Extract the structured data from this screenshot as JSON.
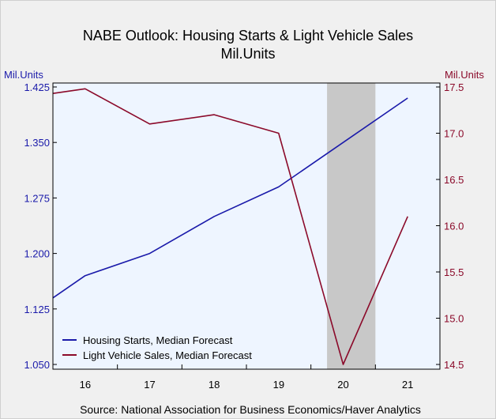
{
  "chart_data": {
    "type": "line",
    "title": "NABE Outlook: Housing Starts & Light Vehicle Sales",
    "subtitle": "Mil.Units",
    "y_left_label": "Mil.Units",
    "y_right_label": "Mil.Units",
    "x": [
      "16",
      "17",
      "18",
      "19",
      "20",
      "21"
    ],
    "x_range": [
      15.5,
      21.5
    ],
    "y_left": {
      "range": [
        1.05,
        1.425
      ],
      "ticks": [
        1.05,
        1.125,
        1.2,
        1.275,
        1.35,
        1.425
      ],
      "tick_labels": [
        "1.050",
        "1.125",
        "1.200",
        "1.275",
        "1.350",
        "1.425"
      ]
    },
    "y_right": {
      "range": [
        14.5,
        17.5
      ],
      "ticks": [
        14.5,
        15.0,
        15.5,
        16.0,
        16.5,
        17.0,
        17.5
      ],
      "tick_labels": [
        "14.5",
        "15.0",
        "15.5",
        "16.0",
        "16.5",
        "17.0",
        "17.5"
      ]
    },
    "shaded_region": [
      19.75,
      20.5
    ],
    "series": [
      {
        "name": "Housing Starts, Median Forecast",
        "axis": "left",
        "color": "#1a1aaa",
        "points": [
          [
            15.5,
            1.14
          ],
          [
            16,
            1.17
          ],
          [
            17,
            1.2
          ],
          [
            18,
            1.25
          ],
          [
            19,
            1.29
          ],
          [
            20,
            1.35
          ],
          [
            21,
            1.41
          ]
        ]
      },
      {
        "name": "Light Vehicle Sales, Median Forecast",
        "axis": "right",
        "color": "#8b0a2a",
        "points": [
          [
            15.5,
            17.43
          ],
          [
            16,
            17.48
          ],
          [
            17,
            17.1
          ],
          [
            18,
            17.2
          ],
          [
            19,
            17.0
          ],
          [
            20,
            14.5
          ],
          [
            21,
            16.1
          ]
        ]
      }
    ],
    "legend_position": "bottom-left",
    "grid": false
  },
  "source": "Source:  National Association for Business Economics/Haver Analytics"
}
